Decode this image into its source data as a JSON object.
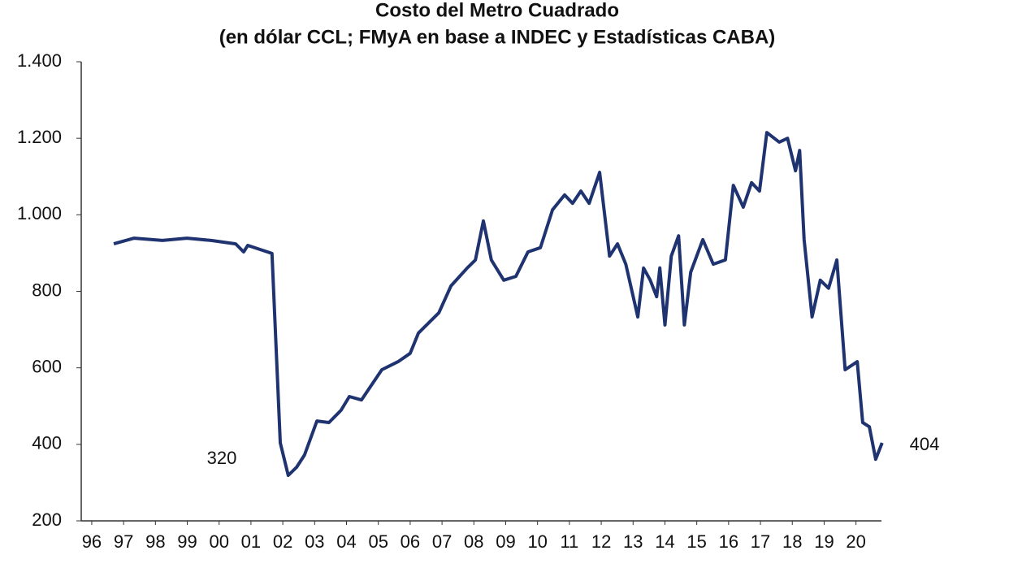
{
  "chart_data": {
    "type": "line",
    "title": "Costo del Metro Cuadrado",
    "subtitle": "(en dólar CCL; FMyA en base a INDEC  y Estadísticas CABA)",
    "annotations": [
      "320",
      "404"
    ],
    "x": [
      1996.69,
      1997.33,
      1998.22,
      1998.99,
      1999.75,
      2000.52,
      2000.77,
      2000.9,
      2001.66,
      2001.92,
      2002.17,
      2002.43,
      2002.68,
      2003.07,
      2003.45,
      2003.83,
      2004.09,
      2004.47,
      2005.11,
      2005.62,
      2006.0,
      2006.26,
      2006.9,
      2007.28,
      2007.79,
      2008.05,
      2008.3,
      2008.55,
      2008.94,
      2009.32,
      2009.7,
      2010.09,
      2010.47,
      2010.85,
      2011.1,
      2011.36,
      2011.62,
      2011.95,
      2012.26,
      2012.51,
      2012.77,
      2013.15,
      2013.33,
      2013.54,
      2013.74,
      2013.84,
      2014.0,
      2014.2,
      2014.43,
      2014.61,
      2014.81,
      2015.19,
      2015.52,
      2015.9,
      2016.15,
      2016.46,
      2016.72,
      2016.97,
      2017.2,
      2017.59,
      2017.85,
      2018.1,
      2018.23,
      2018.37,
      2018.62,
      2018.88,
      2019.14,
      2019.4,
      2019.66,
      2020.04,
      2020.21,
      2020.42,
      2020.62,
      2020.82
    ],
    "series": [
      {
        "name": "Costo",
        "color": "#1f3370",
        "values": [
          924,
          939,
          933,
          939,
          933,
          924,
          903,
          920,
          899,
          404,
          319,
          340,
          372,
          461,
          457,
          489,
          525,
          516,
          595,
          616,
          638,
          691,
          744,
          814,
          861,
          882,
          984,
          882,
          829,
          839,
          903,
          914,
          1013,
          1052,
          1030,
          1062,
          1030,
          1111,
          892,
          924,
          871,
          733,
          861,
          829,
          786,
          861,
          712,
          892,
          945,
          712,
          850,
          935,
          871,
          882,
          1077,
          1020,
          1084,
          1062,
          1215,
          1190,
          1200,
          1115,
          1168,
          935,
          733,
          829,
          808,
          882,
          595,
          616,
          457,
          446,
          361,
          404
        ]
      }
    ],
    "xlim": [
      1995.67,
      2020.8
    ],
    "ylim": [
      200,
      1400
    ],
    "xticks": [
      {
        "value": 1996,
        "label": "96"
      },
      {
        "value": 1997,
        "label": "97"
      },
      {
        "value": 1998,
        "label": "98"
      },
      {
        "value": 1999,
        "label": "99"
      },
      {
        "value": 2000,
        "label": "00"
      },
      {
        "value": 2001,
        "label": "01"
      },
      {
        "value": 2002,
        "label": "02"
      },
      {
        "value": 2003,
        "label": "03"
      },
      {
        "value": 2004,
        "label": "04"
      },
      {
        "value": 2005,
        "label": "05"
      },
      {
        "value": 2006,
        "label": "06"
      },
      {
        "value": 2007,
        "label": "07"
      },
      {
        "value": 2008,
        "label": "08"
      },
      {
        "value": 2009,
        "label": "09"
      },
      {
        "value": 2010,
        "label": "10"
      },
      {
        "value": 2011,
        "label": "11"
      },
      {
        "value": 2012,
        "label": "12"
      },
      {
        "value": 2013,
        "label": "13"
      },
      {
        "value": 2014,
        "label": "14"
      },
      {
        "value": 2015,
        "label": "15"
      },
      {
        "value": 2016,
        "label": "16"
      },
      {
        "value": 2017,
        "label": "17"
      },
      {
        "value": 2018,
        "label": "18"
      },
      {
        "value": 2019,
        "label": "19"
      },
      {
        "value": 2020,
        "label": "20"
      }
    ],
    "yticks": [
      200,
      400,
      600,
      800,
      {
        "value": 1000,
        "label": "1.000"
      },
      {
        "value": 1200,
        "label": "1.200"
      },
      {
        "value": 1400,
        "label": "1.400"
      }
    ],
    "grid": false
  }
}
